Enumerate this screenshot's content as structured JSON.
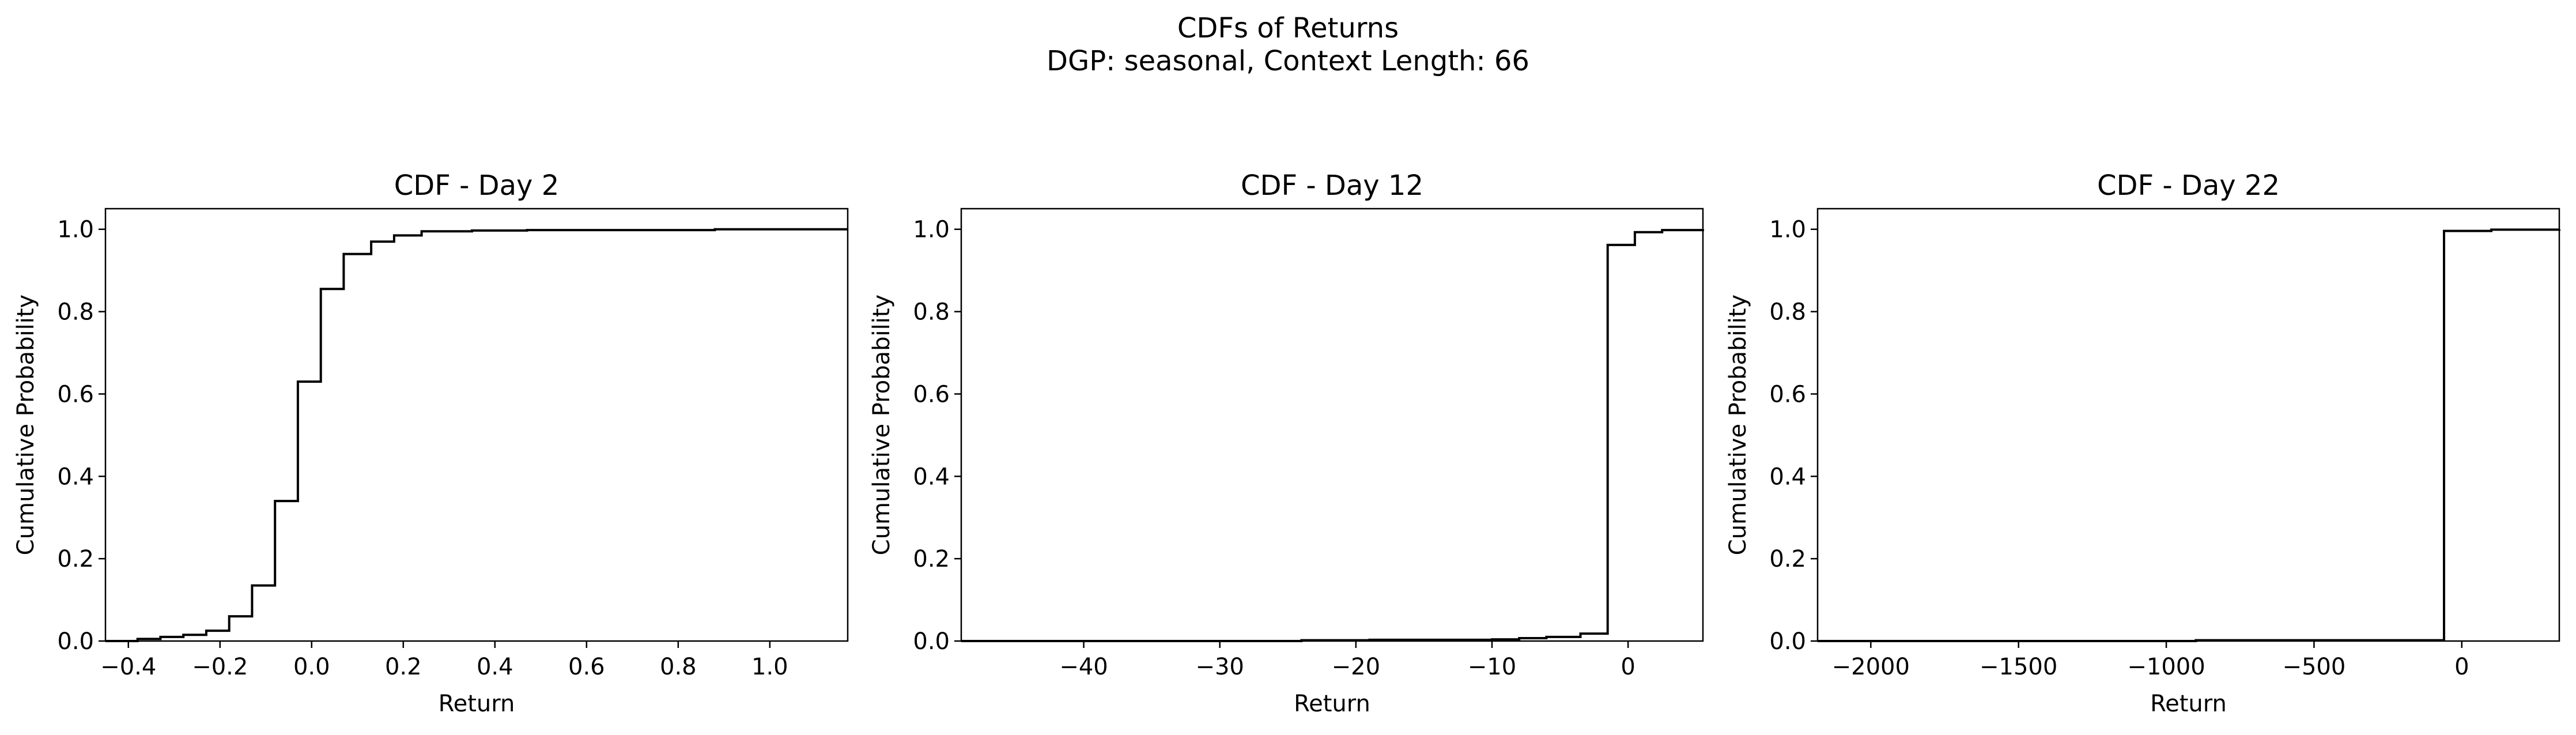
{
  "figure": {
    "title": "CDFs of Returns",
    "subtitle": "DGP: seasonal, Context Length: 66"
  },
  "chart_data": [
    {
      "type": "line",
      "step": "post",
      "title": "CDF - Day 2",
      "xlabel": "Return",
      "ylabel": "Cumulative Probability",
      "xlim": [
        -0.45,
        1.17
      ],
      "ylim": [
        0,
        1.05
      ],
      "xticks": [
        -0.4,
        -0.2,
        0.0,
        0.2,
        0.4,
        0.6,
        0.8,
        1.0
      ],
      "xtick_labels": [
        "−0.4",
        "−0.2",
        "0.0",
        "0.2",
        "0.4",
        "0.6",
        "0.8",
        "1.0"
      ],
      "yticks": [
        0.0,
        0.2,
        0.4,
        0.6,
        0.8,
        1.0
      ],
      "ytick_labels": [
        "0.0",
        "0.2",
        "0.4",
        "0.6",
        "0.8",
        "1.0"
      ],
      "x": [
        -0.45,
        -0.38,
        -0.33,
        -0.28,
        -0.23,
        -0.18,
        -0.13,
        -0.08,
        -0.03,
        0.02,
        0.07,
        0.13,
        0.18,
        0.24,
        0.35,
        0.47,
        0.88,
        1.17
      ],
      "y": [
        0.0,
        0.005,
        0.01,
        0.015,
        0.025,
        0.06,
        0.135,
        0.34,
        0.63,
        0.855,
        0.94,
        0.97,
        0.985,
        0.995,
        0.997,
        0.998,
        1.0,
        1.0
      ]
    },
    {
      "type": "line",
      "step": "post",
      "title": "CDF - Day 12",
      "xlabel": "Return",
      "ylabel": "Cumulative Probability",
      "xlim": [
        -49,
        5.5
      ],
      "ylim": [
        0,
        1.05
      ],
      "xticks": [
        -40,
        -30,
        -20,
        -10,
        0
      ],
      "xtick_labels": [
        "−40",
        "−30",
        "−20",
        "−10",
        "0"
      ],
      "yticks": [
        0.0,
        0.2,
        0.4,
        0.6,
        0.8,
        1.0
      ],
      "ytick_labels": [
        "0.0",
        "0.2",
        "0.4",
        "0.6",
        "0.8",
        "1.0"
      ],
      "x": [
        -49,
        -24,
        -19,
        -10,
        -8,
        -6,
        -3.5,
        -1.5,
        0.5,
        2.5,
        5.5
      ],
      "y": [
        0.0,
        0.002,
        0.003,
        0.004,
        0.007,
        0.01,
        0.018,
        0.962,
        0.993,
        0.998,
        1.0
      ]
    },
    {
      "type": "line",
      "step": "post",
      "title": "CDF - Day 22",
      "xlabel": "Return",
      "ylabel": "Cumulative Probability",
      "xlim": [
        -2180,
        330
      ],
      "ylim": [
        0,
        1.05
      ],
      "xticks": [
        -2000,
        -1500,
        -1000,
        -500,
        0
      ],
      "xtick_labels": [
        "−2000",
        "−1500",
        "−1000",
        "−500",
        "0"
      ],
      "yticks": [
        0.0,
        0.2,
        0.4,
        0.6,
        0.8,
        1.0
      ],
      "ytick_labels": [
        "0.0",
        "0.2",
        "0.4",
        "0.6",
        "0.8",
        "1.0"
      ],
      "x": [
        -2180,
        -900,
        -60,
        100,
        330
      ],
      "y": [
        0.0,
        0.002,
        0.996,
        0.999,
        1.0
      ]
    }
  ]
}
